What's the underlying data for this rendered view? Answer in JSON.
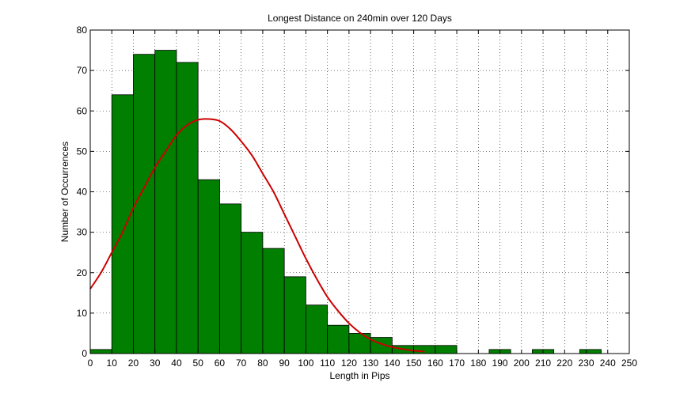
{
  "chart_data": {
    "type": "bar",
    "title": "Longest Distance on 240min over 120 Days",
    "xlabel": "Length in Pips",
    "ylabel": "Number of Occurrences",
    "xlim": [
      0,
      250
    ],
    "ylim": [
      0,
      80
    ],
    "x_ticks": [
      0,
      10,
      20,
      30,
      40,
      50,
      60,
      70,
      80,
      90,
      100,
      110,
      120,
      130,
      140,
      150,
      160,
      170,
      180,
      190,
      200,
      210,
      220,
      230,
      240,
      250
    ],
    "y_ticks": [
      0,
      10,
      20,
      30,
      40,
      50,
      60,
      70,
      80
    ],
    "grid": true,
    "bar_color": "#007f00",
    "bars": [
      {
        "x0": 0,
        "x1": 10,
        "value": 1
      },
      {
        "x0": 10,
        "x1": 20,
        "value": 64
      },
      {
        "x0": 20,
        "x1": 30,
        "value": 74
      },
      {
        "x0": 30,
        "x1": 40,
        "value": 75
      },
      {
        "x0": 40,
        "x1": 50,
        "value": 72
      },
      {
        "x0": 50,
        "x1": 60,
        "value": 43
      },
      {
        "x0": 60,
        "x1": 70,
        "value": 37
      },
      {
        "x0": 70,
        "x1": 80,
        "value": 30
      },
      {
        "x0": 80,
        "x1": 90,
        "value": 26
      },
      {
        "x0": 90,
        "x1": 100,
        "value": 19
      },
      {
        "x0": 100,
        "x1": 110,
        "value": 12
      },
      {
        "x0": 110,
        "x1": 120,
        "value": 7
      },
      {
        "x0": 120,
        "x1": 130,
        "value": 5
      },
      {
        "x0": 130,
        "x1": 140,
        "value": 4
      },
      {
        "x0": 140,
        "x1": 150,
        "value": 2
      },
      {
        "x0": 150,
        "x1": 160,
        "value": 2
      },
      {
        "x0": 160,
        "x1": 170,
        "value": 2
      },
      {
        "x0": 185,
        "x1": 195,
        "value": 1
      },
      {
        "x0": 205,
        "x1": 215,
        "value": 1
      },
      {
        "x0": 227,
        "x1": 237,
        "value": 1
      }
    ],
    "fit_curve": {
      "color": "#cc0000",
      "type": "line",
      "x": [
        0,
        5,
        10,
        15,
        20,
        25,
        30,
        35,
        40,
        45,
        50,
        55,
        60,
        65,
        70,
        75,
        80,
        85,
        90,
        95,
        100,
        105,
        110,
        115,
        120,
        125,
        130,
        135,
        140,
        145,
        150,
        155
      ],
      "y": [
        16,
        20,
        25,
        30,
        36,
        41,
        46,
        50,
        54,
        56.5,
        57.8,
        58,
        57.5,
        55.5,
        52.5,
        49,
        44.5,
        40,
        34.5,
        29,
        23.5,
        18.5,
        14,
        10.5,
        7.5,
        5.2,
        3.5,
        2.4,
        1.6,
        1.1,
        0.7,
        0.5
      ]
    }
  }
}
